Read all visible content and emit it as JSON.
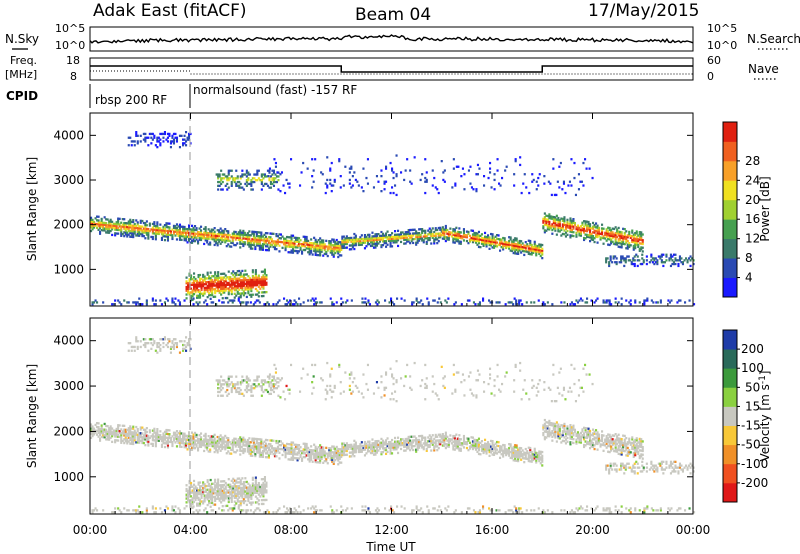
{
  "header": {
    "radar": "Adak East (fitACF)",
    "beam": "Beam 04",
    "date": "17/May/2015"
  },
  "nsky_panel": {
    "left_label": "N.Sky",
    "right_label": "N.Search",
    "ticks": [
      "10^5",
      "10^0"
    ]
  },
  "freq_panel": {
    "left_label_top": "Freq.",
    "left_label_unit": "[MHz]",
    "left_ticks": [
      "18",
      "8"
    ],
    "right_label": "Nave",
    "right_ticks": [
      "60",
      "0"
    ]
  },
  "cpid_panel": {
    "label": "CPID",
    "segments": [
      {
        "start_hour": 0,
        "text": "rbsp 200 RF"
      },
      {
        "start_hour": 4,
        "text": "normalsound (fast) -157 RF"
      }
    ]
  },
  "time_axis": {
    "label": "Time UT",
    "tick_labels": [
      "00:00",
      "04:00",
      "08:00",
      "12:00",
      "16:00",
      "20:00",
      "00:00"
    ],
    "range_hours": [
      0,
      24
    ]
  },
  "chart_data": [
    {
      "type": "heatmap",
      "parameter": "Power",
      "ylabel": "Slant Range [km]",
      "yticks": [
        "1000",
        "2000",
        "3000",
        "4000"
      ],
      "ytick_values": [
        1000,
        2000,
        3000,
        4000
      ],
      "ylim": [
        180,
        4500
      ],
      "colorbar_label": "Power [dB]",
      "colorbar_ticks": [
        "4",
        "8",
        "12",
        "16",
        "20",
        "24",
        "28"
      ],
      "colorbar_range": [
        0,
        30
      ],
      "colors": [
        "#1a1aff",
        "#2a4ab3",
        "#3a7a6a",
        "#46a050",
        "#a0d030",
        "#f0e020",
        "#f8a028",
        "#f06020",
        "#e02010"
      ]
    },
    {
      "type": "heatmap",
      "parameter": "Velocity",
      "ylabel": "Slant Range [km]",
      "yticks": [
        "1000",
        "2000",
        "3000",
        "4000"
      ],
      "ytick_values": [
        1000,
        2000,
        3000,
        4000
      ],
      "ylim": [
        180,
        4500
      ],
      "colorbar_label": "Velocity [m s^-1]",
      "colorbar_ticks": [
        "200",
        "100",
        "50",
        "15",
        "-15",
        "-50",
        "-100",
        "-200"
      ],
      "colors": [
        "#1f3ca8",
        "#2a6a5a",
        "#3c9a3c",
        "#8ad040",
        "#c8c8c0",
        "#f8c838",
        "#f09028",
        "#f05020",
        "#e01818"
      ]
    }
  ]
}
